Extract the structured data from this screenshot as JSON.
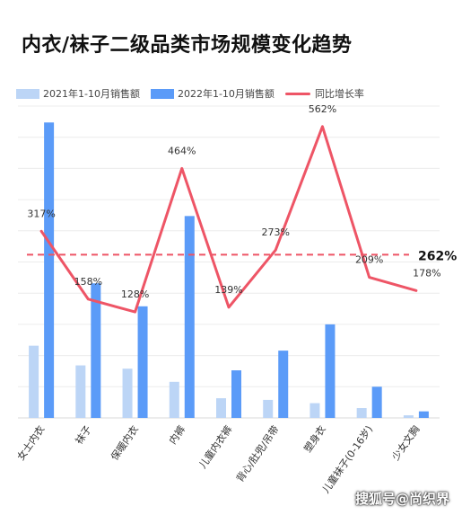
{
  "title": "内衣/袜子二级品类市场规模变化趋势",
  "watermark": "搜狐号@尚织界",
  "colors": {
    "series_2021": "#bcd5f6",
    "series_2022": "#5b9bf8",
    "growth_line": "#ee5566",
    "average_line": "#ee5566",
    "grid": "#ececec"
  },
  "chart_data": {
    "type": "bar",
    "title": "内衣/袜子二级品类市场规模变化趋势",
    "categories": [
      "女士内衣",
      "袜子",
      "保暖内衣",
      "内裤",
      "儿童内衣裤",
      "背心/肚兜/吊带",
      "塑身衣",
      "儿童袜子(0-16岁)",
      "少女文胸"
    ],
    "series": [
      {
        "name": "2021年1-10月销售额",
        "values": [
          2.2,
          1.6,
          1.5,
          1.1,
          0.6,
          0.55,
          0.45,
          0.3,
          0.08
        ]
      },
      {
        "name": "2022年1-10月销售额",
        "values": [
          9.0,
          4.1,
          3.4,
          6.15,
          1.45,
          2.05,
          2.85,
          0.95,
          0.2
        ]
      }
    ],
    "line_series": {
      "name": "同比增长率",
      "values": [
        317,
        158,
        128,
        464,
        139,
        273,
        562,
        209,
        178
      ],
      "labels": [
        "317%",
        "158%",
        "128%",
        "464%",
        "139%",
        "273%",
        "562%",
        "209%",
        "178%"
      ]
    },
    "average_line": {
      "value": 262,
      "label": "262%"
    },
    "bar_axis_max": 9.5,
    "line_axis_range": [
      -120,
      610
    ],
    "grid": true,
    "legend_position": "top-left"
  }
}
